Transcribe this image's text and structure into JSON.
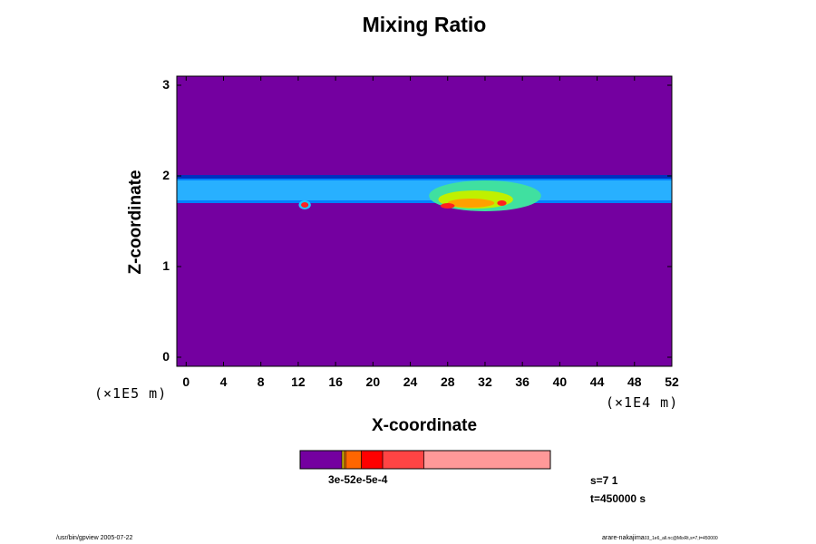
{
  "chart_data": {
    "type": "heatmap",
    "title": "Mixing Ratio",
    "xlabel": "X-coordinate",
    "ylabel": "Z-coordinate",
    "x_scale_label": "(×1E4 m)",
    "y_scale_label": "(×1E5 m)",
    "xlim": [
      -1,
      52
    ],
    "ylim": [
      -0.1,
      3.1
    ],
    "x_ticks": [
      "0",
      "4",
      "8",
      "12",
      "16",
      "20",
      "24",
      "28",
      "32",
      "36",
      "40",
      "44",
      "48",
      "52"
    ],
    "y_ticks": [
      "0",
      "1",
      "2",
      "3"
    ],
    "background_color": "#7400a0",
    "layer": {
      "top": 2.0,
      "bottom": 1.7,
      "color": "#0080ff"
    },
    "features": [
      {
        "x": 12.7,
        "z": 1.68,
        "w": 1.3,
        "h": 0.05,
        "color": "#22c8ff"
      },
      {
        "x": 12.7,
        "z": 1.68,
        "w": 0.8,
        "h": 0.03,
        "color": "#ff2020"
      },
      {
        "x": 32.0,
        "z": 1.78,
        "w": 12.0,
        "h": 0.17,
        "color": "#40e0a0"
      },
      {
        "x": 31.0,
        "z": 1.74,
        "w": 8.0,
        "h": 0.1,
        "color": "#c0f000"
      },
      {
        "x": 30.5,
        "z": 1.7,
        "w": 5.0,
        "h": 0.05,
        "color": "#ffa000"
      },
      {
        "x": 28.0,
        "z": 1.67,
        "w": 1.5,
        "h": 0.03,
        "color": "#ff2020"
      },
      {
        "x": 33.8,
        "z": 1.7,
        "w": 1.0,
        "h": 0.03,
        "color": "#ff2020"
      }
    ],
    "colorbar": {
      "segments": [
        {
          "from": 0,
          "to": 0.167,
          "color": "#7400a0"
        },
        {
          "from": 0.167,
          "to": 0.175,
          "color": "#e0c000"
        },
        {
          "from": 0.175,
          "to": 0.182,
          "color": "#ff9000"
        },
        {
          "from": 0.182,
          "to": 0.245,
          "color": "#ff6600"
        },
        {
          "from": 0.245,
          "to": 0.33,
          "color": "#ff0000"
        },
        {
          "from": 0.33,
          "to": 0.495,
          "color": "#ff4444"
        },
        {
          "from": 0.495,
          "to": 1.0,
          "color": "#ff9999"
        }
      ],
      "labels": "3e-52e-5e-4"
    },
    "annotations": {
      "s": "s=7 1",
      "t": "t=450000 s"
    }
  },
  "footer": {
    "left": "/usr/bin/gpview 2005-07-22",
    "right_user": "arare-nakajima",
    "right_file": "03_1e6_all.nc@MixRt,s=7,t=450000"
  }
}
